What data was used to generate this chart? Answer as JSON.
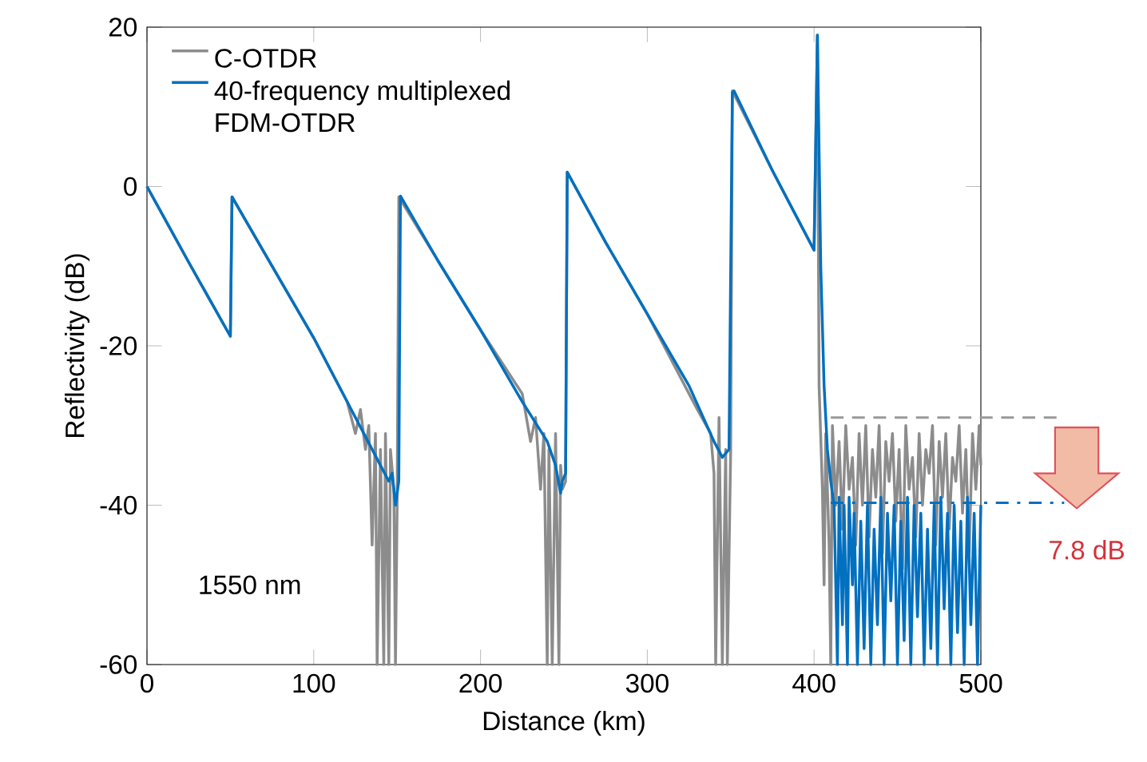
{
  "chart_data": {
    "type": "line",
    "xlabel": "Distance (km)",
    "ylabel": "Reflectivity (dB)",
    "xlim": [
      0,
      500
    ],
    "ylim": [
      -60,
      20
    ],
    "xticks": [
      0,
      100,
      200,
      300,
      400,
      500
    ],
    "yticks": [
      -60,
      -40,
      -20,
      0,
      20
    ],
    "legend": "top left",
    "grid": false,
    "marker": "none",
    "line_style": "solid",
    "annotations": [
      "1550 nm",
      "7.8 dB"
    ],
    "ref_lines": [
      {
        "axis": "y",
        "value": -29,
        "color": "#999999",
        "line_style": "dashed"
      },
      {
        "axis": "y",
        "value": -39.7,
        "color": "#0070c0",
        "line_style": "dashdot"
      }
    ],
    "series": [
      {
        "name": "C-OTDR",
        "color": "#8c8c8c",
        "x": [
          0,
          25,
          50,
          51,
          75,
          100,
          120,
          125,
          128,
          131,
          133,
          135,
          137,
          138,
          140,
          142,
          143,
          145,
          146,
          148,
          149,
          150,
          151,
          175,
          200,
          225,
          230,
          233,
          236,
          238,
          240,
          241,
          243,
          245,
          247,
          248,
          249,
          251,
          252,
          275,
          300,
          330,
          338,
          340,
          341,
          343,
          345,
          347,
          348,
          350,
          351,
          375,
          400,
          402,
          403,
          405,
          406,
          407,
          409,
          410,
          411,
          413,
          415,
          417,
          419,
          421,
          423,
          425,
          427,
          429,
          431,
          433,
          435,
          437,
          439,
          441,
          443,
          445,
          447,
          449,
          451,
          453,
          455,
          457,
          459,
          461,
          463,
          465,
          467,
          469,
          471,
          473,
          475,
          477,
          479,
          481,
          483,
          485,
          487,
          489,
          491,
          493,
          495,
          497,
          499,
          500
        ],
        "values": [
          0,
          -9.5,
          -18.8,
          -1.3,
          -10,
          -19,
          -27,
          -31,
          -28,
          -33,
          -30,
          -45,
          -31,
          -60,
          -33,
          -60,
          -31,
          -60,
          -33,
          -38,
          -60,
          -40,
          -1.3,
          -9.5,
          -18,
          -26,
          -32,
          -29,
          -38,
          -31,
          -60,
          -33,
          -60,
          -31,
          -60,
          -35,
          -38,
          -37,
          1.8,
          -7,
          -16,
          -28,
          -31,
          -36,
          -60,
          -29,
          -60,
          -33,
          -60,
          -33,
          12,
          2,
          -8,
          19,
          -25,
          -38,
          -50,
          -31,
          -45,
          -60,
          -30,
          -40,
          -32,
          -43,
          -30,
          -38,
          -34,
          -45,
          -31,
          -40,
          -30,
          -44,
          -33,
          -39,
          -30,
          -46,
          -32,
          -37,
          -31,
          -42,
          -33,
          -48,
          -30,
          -38,
          -34,
          -44,
          -31,
          -40,
          -33,
          -36,
          -30,
          -45,
          -32,
          -39,
          -31,
          -43,
          -34,
          -37,
          -30,
          -41,
          -33,
          -46,
          -31,
          -38,
          -30,
          -35
        ]
      },
      {
        "name": "40-frequency multiplexed FDM-OTDR",
        "color": "#0070c0",
        "x": [
          0,
          25,
          50,
          51,
          75,
          100,
          120,
          135,
          140,
          145,
          147,
          149,
          151,
          152,
          175,
          200,
          225,
          240,
          245,
          248,
          249,
          251,
          252,
          275,
          300,
          325,
          340,
          345,
          349,
          351,
          352,
          375,
          400,
          402,
          404,
          406,
          408,
          410,
          412,
          414,
          415,
          417,
          418,
          420,
          421,
          423,
          424,
          426,
          428,
          430,
          432,
          434,
          436,
          438,
          440,
          442,
          444,
          446,
          448,
          450,
          452,
          454,
          456,
          458,
          460,
          462,
          464,
          466,
          468,
          470,
          472,
          474,
          476,
          478,
          480,
          482,
          484,
          486,
          488,
          490,
          492,
          494,
          496,
          498,
          500
        ],
        "values": [
          0,
          -9.5,
          -18.8,
          -1.3,
          -10,
          -19,
          -27,
          -33,
          -35,
          -37,
          -36,
          -40,
          -37,
          -1.2,
          -9.5,
          -18,
          -27,
          -32,
          -35,
          -38.5,
          -37,
          -36,
          1.8,
          -7,
          -16,
          -25,
          -32,
          -34,
          -33,
          11.8,
          12,
          2,
          -8,
          19,
          -10,
          -25,
          -33,
          -37,
          -40,
          -60,
          -39,
          -55,
          -40,
          -60,
          -39,
          -50,
          -41,
          -60,
          -42,
          -58,
          -40,
          -60,
          -43,
          -55,
          -39,
          -60,
          -41,
          -52,
          -40,
          -60,
          -42,
          -57,
          -39,
          -60,
          -40,
          -54,
          -41,
          -60,
          -43,
          -58,
          -40,
          -60,
          -39,
          -53,
          -41,
          -60,
          -40,
          -56,
          -42,
          -60,
          -39,
          -55,
          -41,
          -60,
          -40
        ]
      }
    ]
  }
}
